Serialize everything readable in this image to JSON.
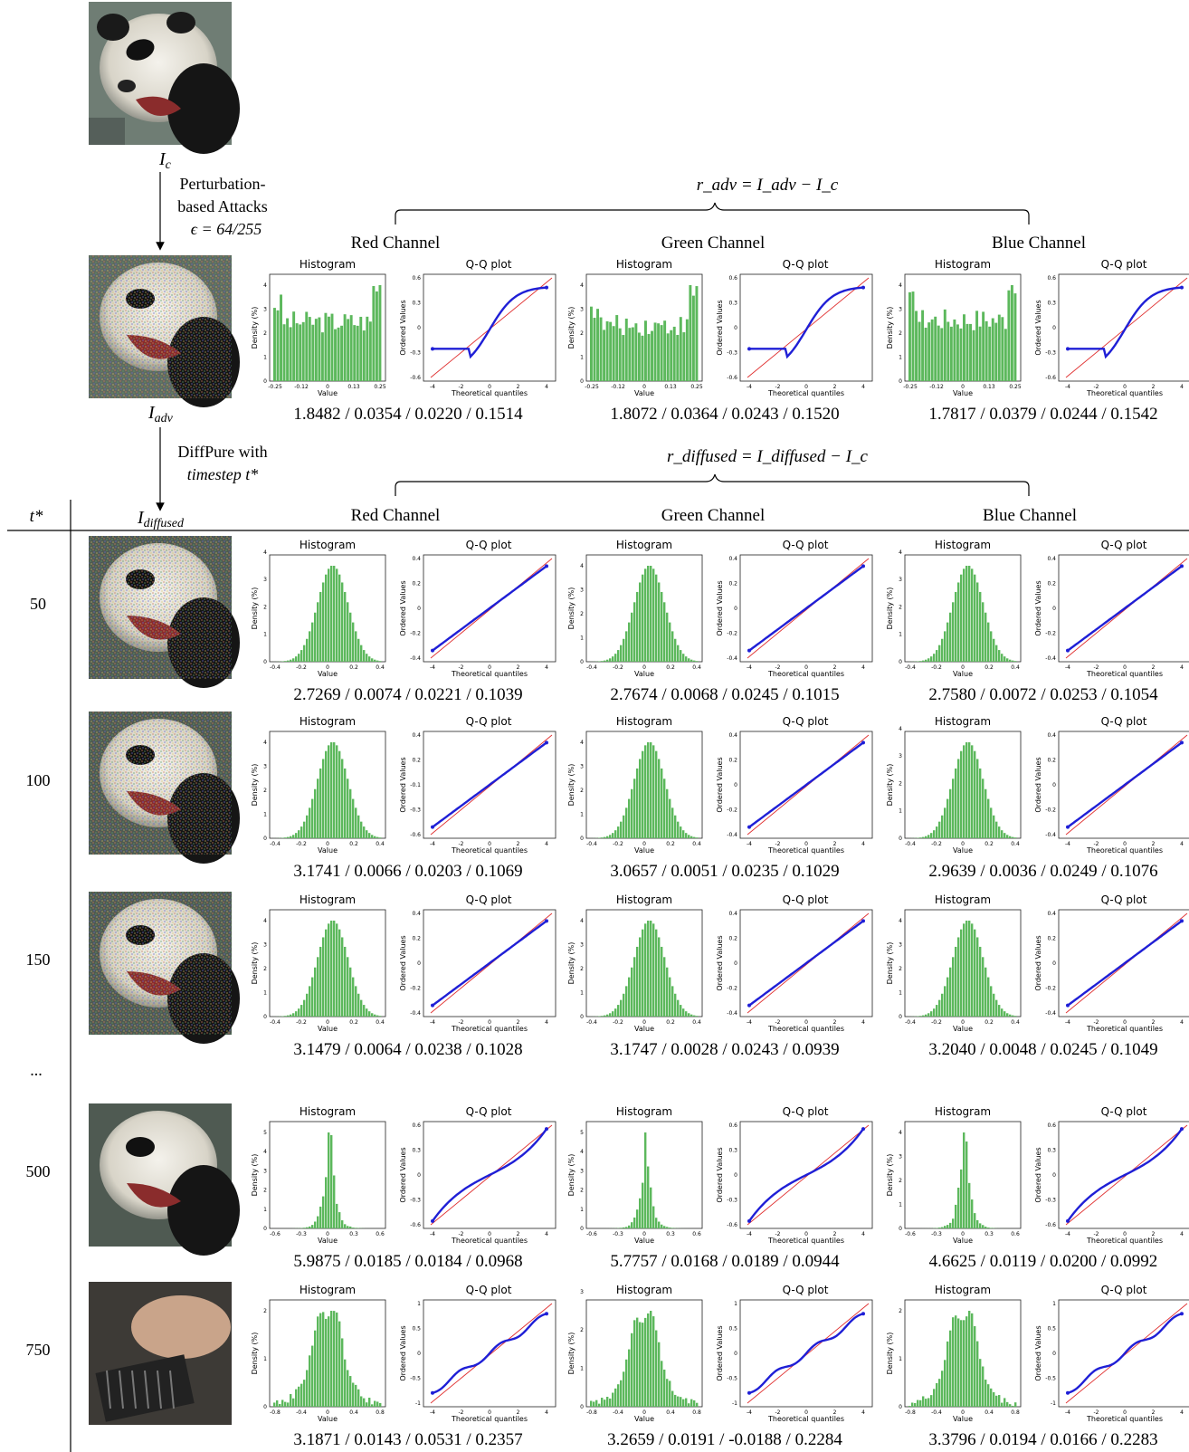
{
  "labels": {
    "clean_image": "I",
    "clean_image_sub": "c",
    "attack_text_1": "Perturbation-",
    "attack_text_2": "based Attacks",
    "epsilon": "ϵ = 64/255",
    "adv_image": "I",
    "adv_image_sub": "adv",
    "diffpure_text_1": "DiffPure with",
    "diffpure_text_2": "timestep t*",
    "r_adv_formula": "r_adv = I_adv − I_c",
    "r_diffused_formula": "r_diffused = I_diffused − I_c",
    "diffused_header": "I",
    "diffused_header_sub": "diffused",
    "tstar_header": "t*",
    "ellipsis": "...",
    "channels": [
      "Red Channel",
      "Green Channel",
      "Blue Channel"
    ],
    "hist_title": "Histogram",
    "qq_title": "Q-Q plot",
    "hist_xlabel": "Value",
    "hist_ylabel": "Density (%)",
    "qq_xlabel": "Theoretical quantiles",
    "qq_ylabel": "Ordered Values"
  },
  "colors": {
    "hist_bar": "#5cb85c",
    "qq_points": "#1f1fd6",
    "qq_line": "#e03030"
  },
  "chart_data": [
    {
      "type": "bar",
      "row": "adversarial",
      "channels": [
        {
          "name": "Red Channel",
          "stats": "1.8482 / 0.0354 / 0.0220 / 0.1514",
          "hist_shape": "uniform",
          "xlim": [
            -0.25,
            0.25
          ],
          "ymax": 4,
          "qq_ylim": [
            -0.6,
            0.6
          ],
          "qq_shape": "clipped"
        },
        {
          "name": "Green Channel",
          "stats": "1.8072 / 0.0364 / 0.0243 / 0.1520",
          "hist_shape": "uniform",
          "xlim": [
            -0.25,
            0.25
          ],
          "ymax": 4,
          "qq_ylim": [
            -0.6,
            0.6
          ],
          "qq_shape": "clipped"
        },
        {
          "name": "Blue Channel",
          "stats": "1.7817 / 0.0379 / 0.0244 / 0.1542",
          "hist_shape": "uniform",
          "xlim": [
            -0.25,
            0.25
          ],
          "ymax": 4,
          "qq_ylim": [
            -0.6,
            0.6
          ],
          "qq_shape": "clipped"
        }
      ]
    },
    {
      "type": "bar",
      "row": "50",
      "channels": [
        {
          "name": "Red Channel",
          "stats": "2.7269 / 0.0074 / 0.0221 / 0.1039",
          "hist_shape": "normal",
          "xlim": [
            -0.4,
            0.4
          ],
          "ymax": 3.5,
          "qq_ylim": [
            -0.4,
            0.4
          ],
          "qq_shape": "linear"
        },
        {
          "name": "Green Channel",
          "stats": "2.7674 / 0.0068 / 0.0245 / 0.1015",
          "hist_shape": "normal",
          "xlim": [
            -0.4,
            0.4
          ],
          "ymax": 4,
          "qq_ylim": [
            -0.4,
            0.4
          ],
          "qq_shape": "linear"
        },
        {
          "name": "Blue Channel",
          "stats": "2.7580 / 0.0072 / 0.0253 / 0.1054",
          "hist_shape": "normal",
          "xlim": [
            -0.4,
            0.4
          ],
          "ymax": 3.5,
          "qq_ylim": [
            -0.4,
            0.4
          ],
          "qq_shape": "linear"
        }
      ]
    },
    {
      "type": "bar",
      "row": "100",
      "channels": [
        {
          "name": "Red Channel",
          "stats": "3.1741 / 0.0066 / 0.0203 / 0.1069",
          "hist_shape": "normal",
          "xlim": [
            -0.4,
            0.4
          ],
          "ymax": 4,
          "qq_ylim": [
            -0.6,
            0.4
          ],
          "qq_shape": "linear"
        },
        {
          "name": "Green Channel",
          "stats": "3.0657 / 0.0051 / 0.0235 / 0.1029",
          "hist_shape": "normal",
          "xlim": [
            -0.4,
            0.4
          ],
          "ymax": 4,
          "qq_ylim": [
            -0.4,
            0.4
          ],
          "qq_shape": "linear"
        },
        {
          "name": "Blue Channel",
          "stats": "2.9639 / 0.0036 / 0.0249 / 0.1076",
          "hist_shape": "normal",
          "xlim": [
            -0.4,
            0.4
          ],
          "ymax": 3.5,
          "qq_ylim": [
            -0.4,
            0.4
          ],
          "qq_shape": "linear"
        }
      ]
    },
    {
      "type": "bar",
      "row": "150",
      "channels": [
        {
          "name": "Red Channel",
          "stats": "3.1479 / 0.0064 / 0.0238 / 0.1028",
          "hist_shape": "normal",
          "xlim": [
            -0.4,
            0.4
          ],
          "ymax": 4,
          "qq_ylim": [
            -0.4,
            0.4
          ],
          "qq_shape": "linear"
        },
        {
          "name": "Green Channel",
          "stats": "3.1747 / 0.0028 / 0.0243 / 0.0939",
          "hist_shape": "normal",
          "xlim": [
            -0.4,
            0.4
          ],
          "ymax": 4,
          "qq_ylim": [
            -0.4,
            0.4
          ],
          "qq_shape": "linear"
        },
        {
          "name": "Blue Channel",
          "stats": "3.2040 / 0.0048 / 0.0245 / 0.1049",
          "hist_shape": "normal",
          "xlim": [
            -0.4,
            0.4
          ],
          "ymax": 4,
          "qq_ylim": [
            -0.4,
            0.4
          ],
          "qq_shape": "linear"
        }
      ]
    },
    {
      "type": "bar",
      "row": "500",
      "channels": [
        {
          "name": "Red Channel",
          "stats": "5.9875 / 0.0185 / 0.0184 / 0.0968",
          "hist_shape": "peaked",
          "xlim": [
            -0.6,
            0.6
          ],
          "ymax": 5,
          "qq_ylim": [
            -0.6,
            0.6
          ],
          "qq_shape": "heavy"
        },
        {
          "name": "Green Channel",
          "stats": "5.7757 / 0.0168 / 0.0189 / 0.0944",
          "hist_shape": "peaked",
          "xlim": [
            -0.6,
            0.6
          ],
          "ymax": 5,
          "qq_ylim": [
            -0.6,
            0.6
          ],
          "qq_shape": "heavy"
        },
        {
          "name": "Blue Channel",
          "stats": "4.6625 / 0.0119 / 0.0200 / 0.0992",
          "hist_shape": "peaked",
          "xlim": [
            -0.6,
            0.6
          ],
          "ymax": 4,
          "qq_ylim": [
            -0.6,
            0.6
          ],
          "qq_shape": "heavy"
        }
      ]
    },
    {
      "type": "bar",
      "row": "750",
      "channels": [
        {
          "name": "Red Channel",
          "stats": "3.1871 / 0.0143 / 0.0531 / 0.2357",
          "hist_shape": "bimodal",
          "xlim": [
            -0.8,
            0.8
          ],
          "ymax": 2,
          "qq_ylim": [
            -1,
            1
          ],
          "qq_shape": "wavy"
        },
        {
          "name": "Green Channel",
          "stats": "3.2659 / 0.0191 / -0.0188 / 0.2284",
          "hist_shape": "bimodal",
          "xlim": [
            -0.8,
            0.8
          ],
          "ymax": 2.5,
          "qq_ylim": [
            -1,
            1
          ],
          "qq_shape": "wavy"
        },
        {
          "name": "Blue Channel",
          "stats": "3.3796 / 0.0194 / 0.0166 / 0.2283",
          "hist_shape": "bimodal",
          "xlim": [
            -0.8,
            0.8
          ],
          "ymax": 2,
          "qq_ylim": [
            -1,
            1
          ],
          "qq_shape": "wavy"
        }
      ]
    }
  ],
  "timesteps": [
    "50",
    "100",
    "150",
    "500",
    "750"
  ]
}
